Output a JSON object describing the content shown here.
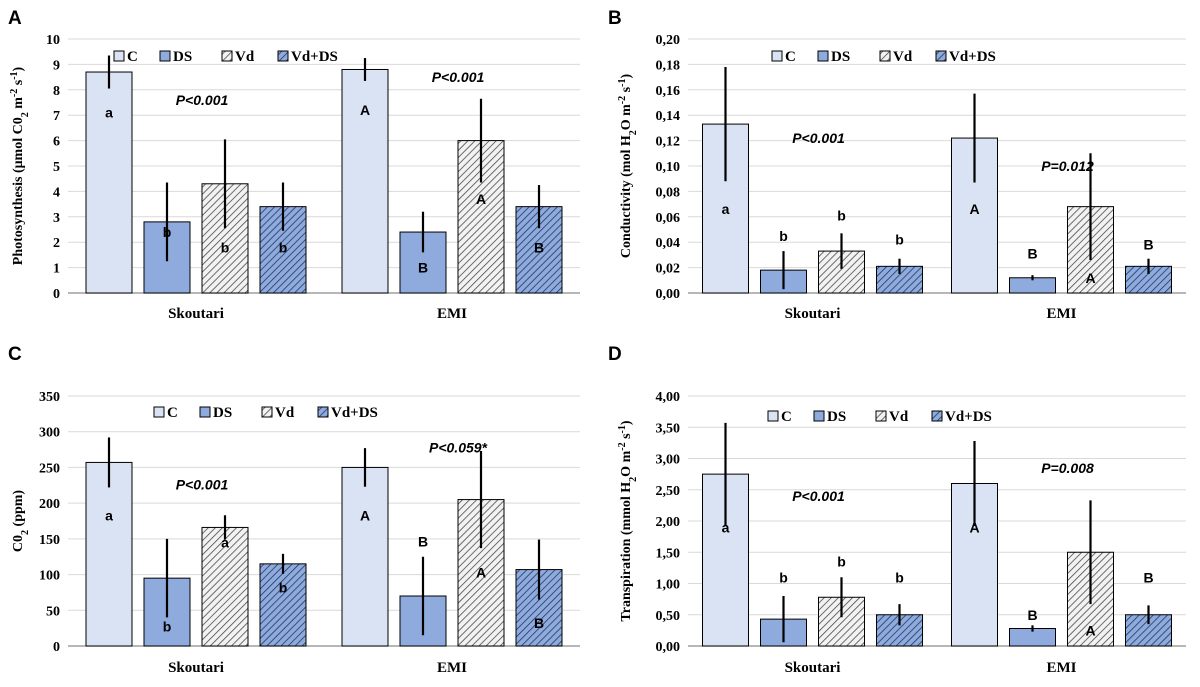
{
  "colors": {
    "C": "#dae3f3",
    "DS": "#8faadc",
    "Vd_bg": "#f2f2f2",
    "Vd_line": "#404040",
    "VdDS_bg": "#8faadc",
    "VdDS_line": "#1f3864",
    "stroke": "#000000"
  },
  "legend": [
    "C",
    "DS",
    "Vd",
    "Vd+DS"
  ],
  "chart_data": [
    {
      "panel": "A",
      "type": "bar",
      "ylabel_parts": [
        "Photosynthesis (μmol C0",
        "2",
        " m",
        "-2",
        " s",
        "-1",
        ")"
      ],
      "ylim": [
        0,
        10
      ],
      "yticks": [
        "0",
        "1",
        "2",
        "3",
        "4",
        "5",
        "6",
        "7",
        "8",
        "9",
        "10"
      ],
      "categories": [
        "Skoutari",
        "EMI"
      ],
      "series": [
        {
          "name": "C",
          "values": [
            8.7,
            8.8
          ],
          "errors": [
            0.65,
            0.45
          ],
          "letters": [
            "a",
            "A"
          ],
          "letter_y": [
            7.1,
            7.2
          ]
        },
        {
          "name": "DS",
          "values": [
            2.8,
            2.4
          ],
          "errors": [
            1.55,
            0.8
          ],
          "letters": [
            "b",
            "B"
          ],
          "letter_y": [
            2.4,
            1.0
          ]
        },
        {
          "name": "Vd",
          "values": [
            4.3,
            6.0
          ],
          "errors": [
            1.75,
            1.65
          ],
          "letters": [
            "b",
            "A"
          ],
          "letter_y": [
            1.8,
            3.7
          ]
        },
        {
          "name": "Vd+DS",
          "values": [
            3.4,
            3.4
          ],
          "errors": [
            0.95,
            0.85
          ],
          "letters": [
            "b",
            "B"
          ],
          "letter_y": [
            1.8,
            1.8
          ]
        }
      ],
      "pvalues": [
        {
          "text": "P<0.001",
          "group": 0,
          "y": 7.6
        },
        {
          "text": "P<0.001",
          "group": 1,
          "y": 8.5
        }
      ]
    },
    {
      "panel": "B",
      "type": "bar",
      "ylabel_parts": [
        "Conductivity (mol H",
        "2",
        "O m",
        "-2",
        " s",
        "-1",
        ")"
      ],
      "ylim": [
        0,
        0.2
      ],
      "yticks": [
        "0,00",
        "0,02",
        "0,04",
        "0,06",
        "0,08",
        "0,10",
        "0,12",
        "0,14",
        "0,16",
        "0,18",
        "0,20"
      ],
      "categories": [
        "Skoutari",
        "EMI"
      ],
      "series": [
        {
          "name": "C",
          "values": [
            0.133,
            0.122
          ],
          "errors": [
            0.045,
            0.035
          ],
          "letters": [
            "a",
            "A"
          ],
          "letter_y": [
            0.066,
            0.066
          ]
        },
        {
          "name": "DS",
          "values": [
            0.018,
            0.012
          ],
          "errors": [
            0.015,
            0.002
          ],
          "letters": [
            "b",
            "B"
          ],
          "letter_y": [
            0.045,
            0.031
          ]
        },
        {
          "name": "Vd",
          "values": [
            0.033,
            0.068
          ],
          "errors": [
            0.014,
            0.042
          ],
          "letters": [
            "b",
            "A"
          ],
          "letter_y": [
            0.061,
            0.012
          ]
        },
        {
          "name": "Vd+DS",
          "values": [
            0.021,
            0.021
          ],
          "errors": [
            0.006,
            0.006
          ],
          "letters": [
            "b",
            "B"
          ],
          "letter_y": [
            0.042,
            0.038
          ]
        }
      ],
      "pvalues": [
        {
          "text": "P<0.001",
          "group": 0,
          "y": 0.122
        },
        {
          "text": "P=0.012",
          "group": 1,
          "y": 0.1
        }
      ]
    },
    {
      "panel": "C",
      "type": "bar",
      "ylabel_parts": [
        "C0",
        "2",
        " (ppm)"
      ],
      "ylim": [
        0,
        350
      ],
      "yticks": [
        "0",
        "50",
        "100",
        "150",
        "200",
        "250",
        "300",
        "350"
      ],
      "categories": [
        "Skoutari",
        "EMI"
      ],
      "series": [
        {
          "name": "C",
          "values": [
            257,
            250
          ],
          "errors": [
            35,
            27
          ],
          "letters": [
            "a",
            "A"
          ],
          "letter_y": [
            183,
            183
          ]
        },
        {
          "name": "DS",
          "values": [
            95,
            70
          ],
          "errors": [
            55,
            55
          ],
          "letters": [
            "b",
            "B"
          ],
          "letter_y": [
            27,
            146
          ]
        },
        {
          "name": "Vd",
          "values": [
            166,
            205
          ],
          "errors": [
            17,
            68
          ],
          "letters": [
            "a",
            "A"
          ],
          "letter_y": [
            145,
            103
          ]
        },
        {
          "name": "Vd+DS",
          "values": [
            115,
            107
          ],
          "errors": [
            14,
            42
          ],
          "letters": [
            "b",
            "B"
          ],
          "letter_y": [
            82,
            32
          ]
        }
      ],
      "pvalues": [
        {
          "text": "P<0.001",
          "group": 0,
          "y": 226
        },
        {
          "text": "P<0.059*",
          "group": 1,
          "y": 278
        }
      ]
    },
    {
      "panel": "D",
      "type": "bar",
      "ylabel_parts": [
        "Transpiration (mmol H",
        "2",
        "O m",
        "-2",
        " s",
        "-1",
        ")"
      ],
      "ylim": [
        0,
        4
      ],
      "yticks": [
        "0,00",
        "0,50",
        "1,00",
        "1,50",
        "2,00",
        "2,50",
        "3,00",
        "3,50",
        "4,00"
      ],
      "categories": [
        "Skoutari",
        "EMI"
      ],
      "series": [
        {
          "name": "C",
          "values": [
            2.75,
            2.6
          ],
          "errors": [
            0.82,
            0.68
          ],
          "letters": [
            "a",
            "A"
          ],
          "letter_y": [
            1.9,
            1.9
          ]
        },
        {
          "name": "DS",
          "values": [
            0.43,
            0.28
          ],
          "errors": [
            0.37,
            0.05
          ],
          "letters": [
            "b",
            "B"
          ],
          "letter_y": [
            1.1,
            0.5
          ]
        },
        {
          "name": "Vd",
          "values": [
            0.78,
            1.5
          ],
          "errors": [
            0.32,
            0.83
          ],
          "letters": [
            "b",
            "A"
          ],
          "letter_y": [
            1.35,
            0.25
          ]
        },
        {
          "name": "Vd+DS",
          "values": [
            0.5,
            0.5
          ],
          "errors": [
            0.17,
            0.15
          ],
          "letters": [
            "b",
            "B"
          ],
          "letter_y": [
            1.1,
            1.1
          ]
        }
      ],
      "pvalues": [
        {
          "text": "P<0.001",
          "group": 0,
          "y": 2.4
        },
        {
          "text": "P=0.008",
          "group": 1,
          "y": 2.85
        }
      ]
    }
  ]
}
